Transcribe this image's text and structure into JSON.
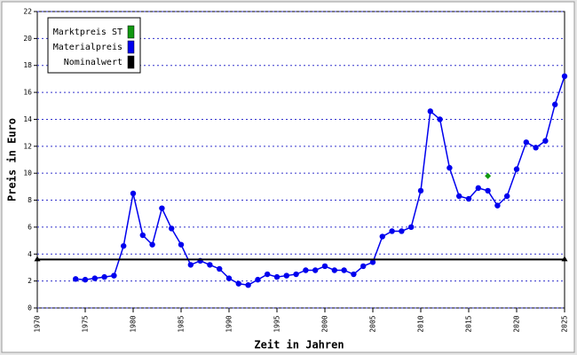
{
  "chart_data": {
    "type": "line",
    "xlabel": "Zeit in Jahren",
    "ylabel": "Preis in Euro",
    "xlim": [
      1970,
      2025
    ],
    "xticks": [
      1970,
      1975,
      1980,
      1985,
      1990,
      1995,
      2000,
      2005,
      2010,
      2015,
      2020,
      2025
    ],
    "ylim": [
      0,
      22
    ],
    "yticks": [
      0,
      2,
      4,
      6,
      8,
      10,
      12,
      14,
      16,
      18,
      20,
      22
    ],
    "grid": true,
    "legend": "top-left",
    "series": [
      {
        "name": "Marktpreis ST",
        "color": "#119911",
        "x": [
          2017
        ],
        "values": [
          9.8
        ]
      },
      {
        "name": "Materialpreis",
        "color": "#0000ee",
        "x": [
          1974,
          1975,
          1976,
          1977,
          1978,
          1979,
          1980,
          1981,
          1982,
          1983,
          1984,
          1985,
          1986,
          1987,
          1988,
          1989,
          1990,
          1991,
          1992,
          1993,
          1994,
          1995,
          1996,
          1997,
          1998,
          1999,
          2000,
          2001,
          2002,
          2003,
          2004,
          2005,
          2006,
          2007,
          2008,
          2009,
          2010,
          2011,
          2012,
          2013,
          2014,
          2015,
          2016,
          2017,
          2018,
          2019,
          2020,
          2021,
          2022,
          2023,
          2024,
          2025
        ],
        "values": [
          2.15,
          2.1,
          2.2,
          2.3,
          2.4,
          4.6,
          8.5,
          5.4,
          4.7,
          7.4,
          5.9,
          4.7,
          3.2,
          3.5,
          3.2,
          2.9,
          2.2,
          1.8,
          1.7,
          2.1,
          2.5,
          2.3,
          2.4,
          2.5,
          2.8,
          2.8,
          3.1,
          2.8,
          2.8,
          2.5,
          3.1,
          3.4,
          5.3,
          5.7,
          5.7,
          6.0,
          8.7,
          14.6,
          14.0,
          10.4,
          8.3,
          8.1,
          8.9,
          8.7,
          7.6,
          8.3,
          10.3,
          12.3,
          11.9,
          12.4,
          15.1,
          17.2
        ]
      },
      {
        "name": "Nominalwert",
        "color": "#000000",
        "x": [
          1970,
          2025
        ],
        "values": [
          3.6,
          3.6
        ]
      }
    ]
  }
}
